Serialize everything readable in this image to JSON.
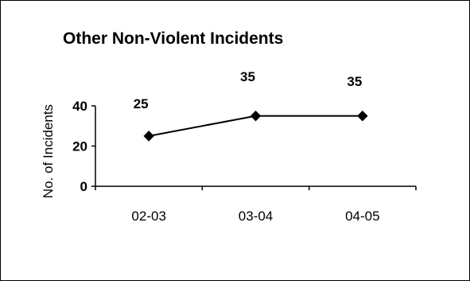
{
  "chart_data": {
    "type": "line",
    "title": "Other Non-Violent Incidents",
    "xlabel": "",
    "ylabel": "No. of Incidents",
    "categories": [
      "02-03",
      "03-04",
      "04-05"
    ],
    "series": [
      {
        "values": [
          25,
          35,
          35
        ]
      }
    ],
    "data_labels": [
      "25",
      "35",
      "35"
    ],
    "yticks": [
      0,
      20,
      40
    ],
    "ytick_labels": [
      "0",
      "20",
      "40"
    ],
    "ylim": [
      0,
      40
    ],
    "grid": false,
    "legend": "none",
    "colors": {
      "line": "#000000",
      "marker": "#000000"
    },
    "marker": "diamond"
  }
}
